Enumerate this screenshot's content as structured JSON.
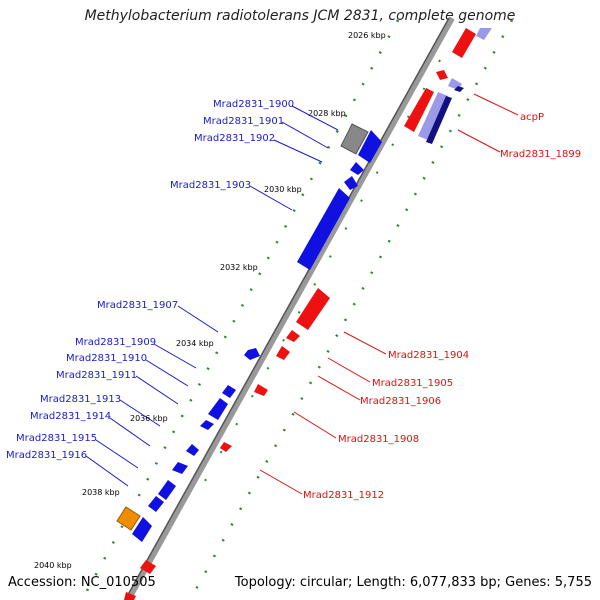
{
  "title": "Methylobacterium radiotolerans JCM 2831, complete genome",
  "accession": "Accession: NC_010505",
  "topology": "Topology: circular; Length: 6,077,833 bp; Genes: 5,755",
  "kbp_ticks": [
    "2026 kbp",
    "2028 kbp",
    "2030 kbp",
    "2032 kbp",
    "2034 kbp",
    "2036 kbp",
    "2038 kbp",
    "2040 kbp"
  ],
  "left_labels": [
    "Mrad2831_1900",
    "Mrad2831_1901",
    "Mrad2831_1902",
    "Mrad2831_1903",
    "Mrad2831_1907",
    "Mrad2831_1909",
    "Mrad2831_1910",
    "Mrad2831_1911",
    "Mrad2831_1913",
    "Mrad2831_1914",
    "Mrad2831_1915",
    "Mrad2831_1916"
  ],
  "right_labels": [
    "acpP",
    "Mrad2831_1899",
    "Mrad2831_1904",
    "Mrad2831_1905",
    "Mrad2831_1906",
    "Mrad2831_1908",
    "Mrad2831_1912"
  ],
  "colors": {
    "forward": "#1010e0",
    "reverse": "#ee1111",
    "backbone": "#777777",
    "tick": "#2a8a2a",
    "orange": "#f08c00"
  }
}
